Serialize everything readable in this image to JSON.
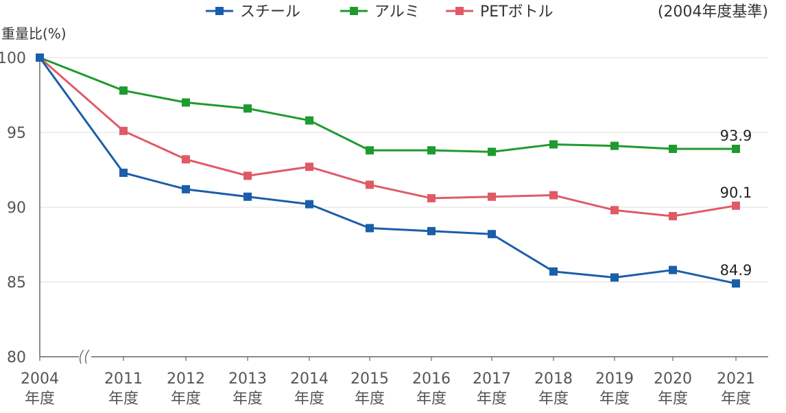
{
  "chart_data": {
    "type": "line",
    "ylabel": "重量比(%)",
    "note": "(2004年度基準)",
    "ylim": [
      80,
      100
    ],
    "yticks": [
      80,
      85,
      90,
      95,
      100
    ],
    "categories": [
      "2004",
      "2011",
      "2012",
      "2013",
      "2014",
      "2015",
      "2016",
      "2017",
      "2018",
      "2019",
      "2020",
      "2021"
    ],
    "category_suffix": "年度",
    "axis_break_after": "2004",
    "grid": true,
    "legend_position": "top",
    "series": [
      {
        "name": "スチール",
        "color": "#1a5ea8",
        "values": [
          100,
          92.3,
          91.2,
          90.7,
          90.2,
          88.6,
          88.4,
          88.2,
          85.7,
          85.3,
          85.8,
          84.9
        ],
        "end_label": "84.9"
      },
      {
        "name": "アルミ",
        "color": "#1e9a2e",
        "values": [
          100,
          97.8,
          97.0,
          96.6,
          95.8,
          93.8,
          93.8,
          93.7,
          94.2,
          94.1,
          93.9,
          93.9
        ],
        "end_label": "93.9"
      },
      {
        "name": "PETボトル",
        "color": "#e05a66",
        "values": [
          100,
          95.1,
          93.2,
          92.1,
          92.7,
          91.5,
          90.6,
          90.7,
          90.8,
          89.8,
          89.4,
          90.1
        ],
        "end_label": "90.1"
      }
    ]
  }
}
